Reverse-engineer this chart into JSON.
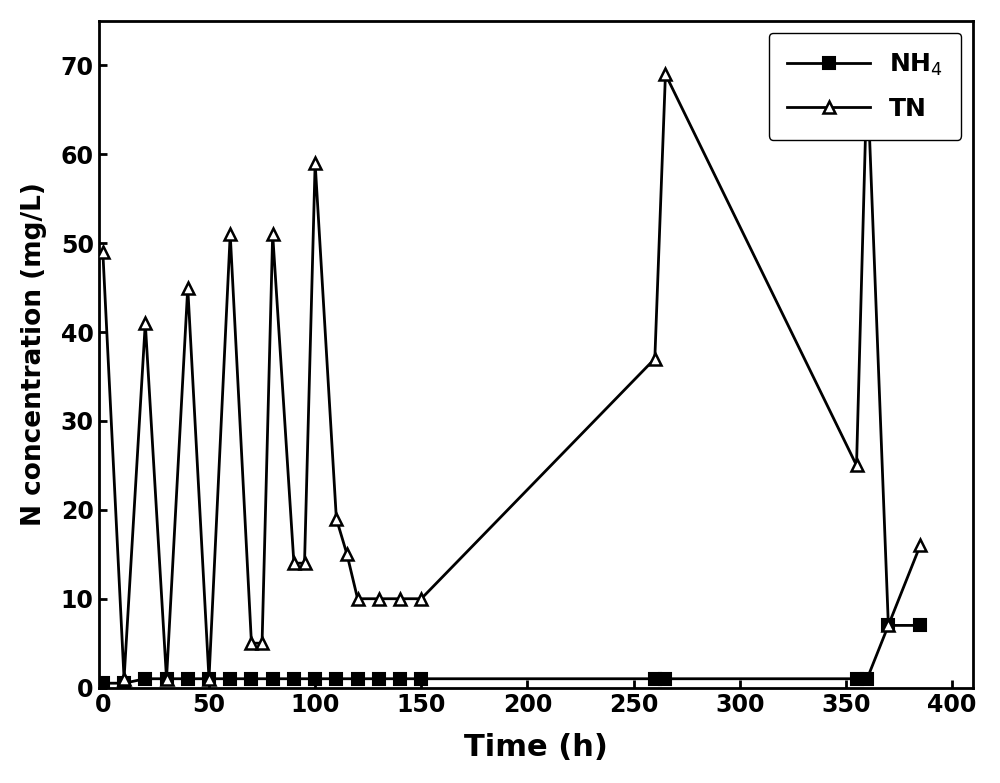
{
  "NH4_x": [
    0,
    10,
    20,
    30,
    40,
    50,
    60,
    70,
    80,
    90,
    100,
    110,
    120,
    130,
    140,
    150,
    260,
    265,
    355,
    360,
    370,
    385
  ],
  "NH4_y": [
    0.5,
    0.5,
    1,
    1,
    1,
    1,
    1,
    1,
    1,
    1,
    1,
    1,
    1,
    1,
    1,
    1,
    1,
    1,
    1,
    1,
    7,
    7
  ],
  "TN_x": [
    0,
    10,
    20,
    30,
    40,
    50,
    60,
    70,
    75,
    80,
    90,
    95,
    100,
    110,
    115,
    120,
    130,
    140,
    150,
    260,
    265,
    355,
    360,
    370,
    385
  ],
  "TN_y": [
    49,
    1,
    41,
    1,
    45,
    1,
    51,
    5,
    5,
    51,
    14,
    14,
    59,
    19,
    15,
    10,
    10,
    10,
    10,
    37,
    69,
    25,
    69,
    7,
    16
  ],
  "xlabel": "Time (h)",
  "ylabel": "N concentration (mg/L)",
  "NH4_label": "NH$_4$",
  "TN_label": "TN",
  "xlim": [
    -2,
    410
  ],
  "ylim": [
    0,
    75
  ],
  "xticks": [
    0,
    50,
    100,
    150,
    200,
    250,
    300,
    350,
    400
  ],
  "yticks": [
    0,
    10,
    20,
    30,
    40,
    50,
    60,
    70
  ],
  "line_color": "#000000",
  "background_color": "#ffffff",
  "linewidth": 2.0,
  "markersize": 8
}
